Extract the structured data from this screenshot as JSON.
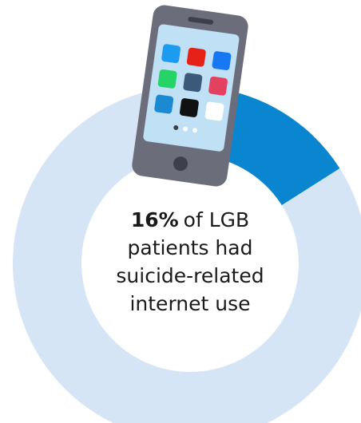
{
  "chart_data": {
    "type": "donut",
    "values": [
      16,
      84
    ],
    "value_labels": [
      "16%",
      null
    ],
    "colors": [
      "#0a86d0",
      "#d5e5f5"
    ],
    "annotation": "of LGB patients had suicide-related internet use"
  }
}
